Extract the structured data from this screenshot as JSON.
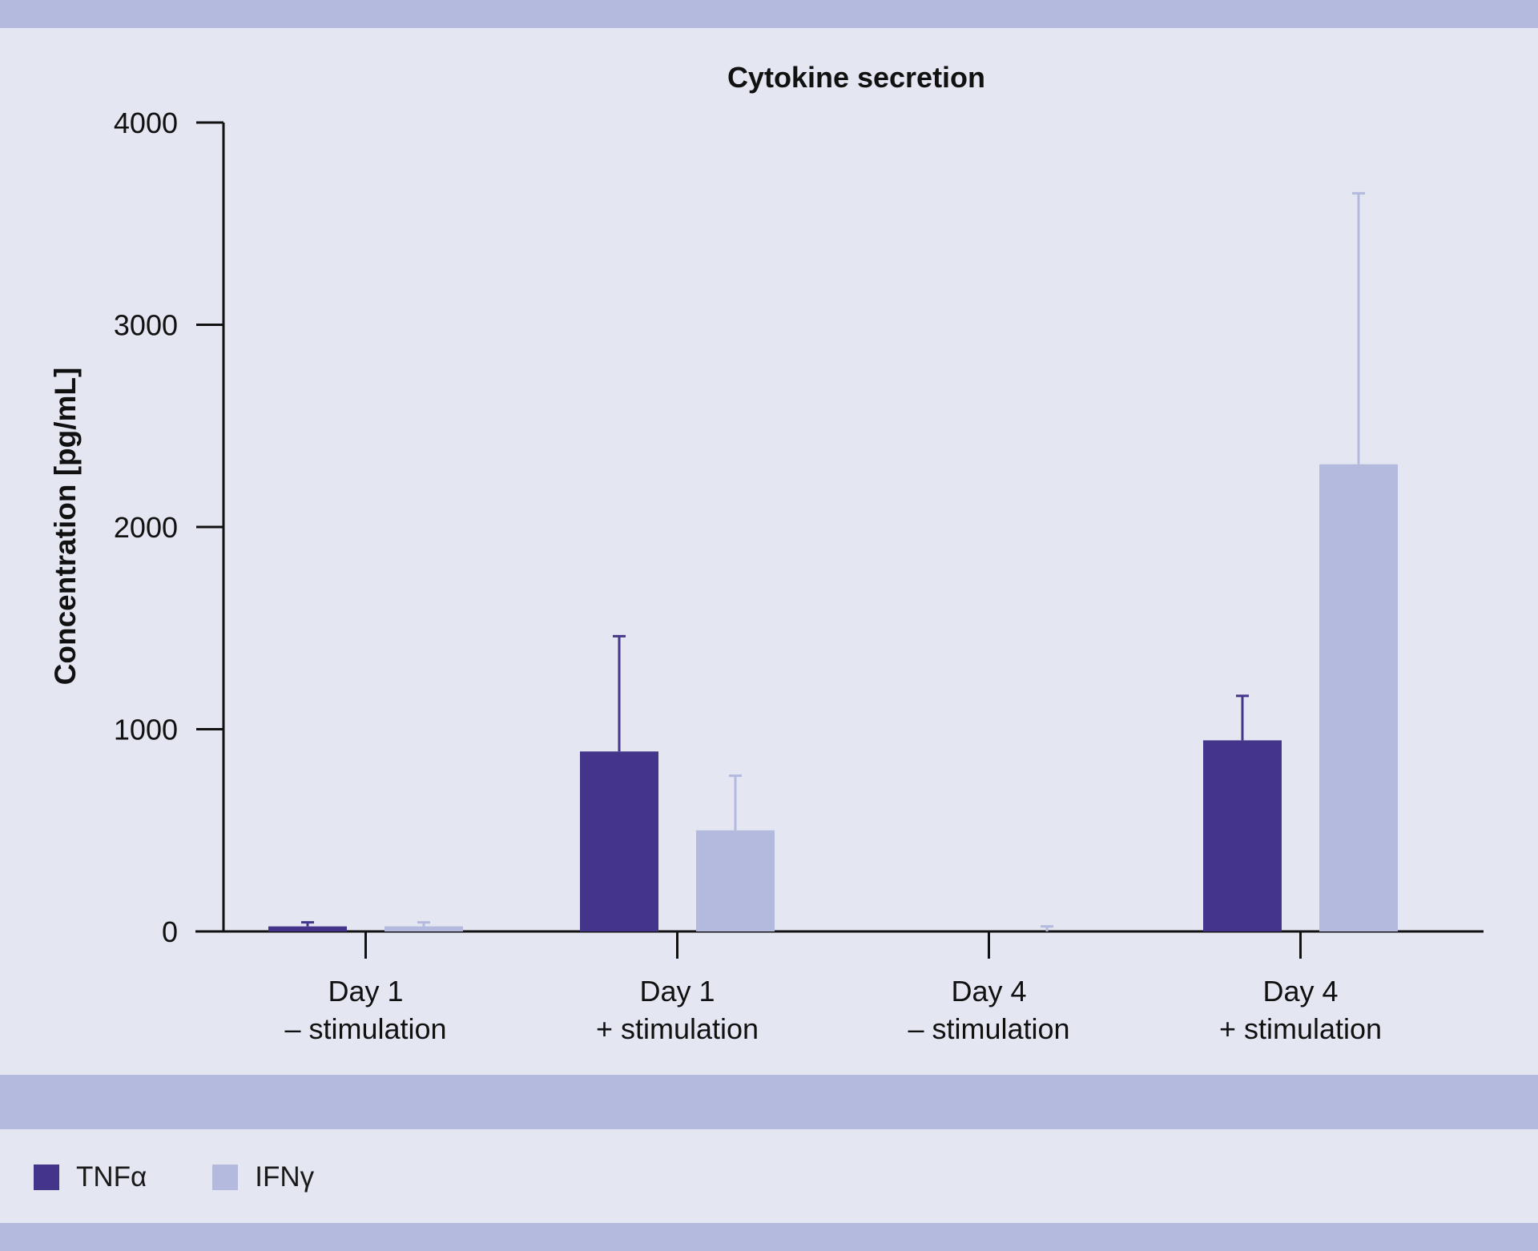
{
  "chart_data": {
    "type": "bar",
    "title": "Cytokine secretion",
    "xlabel": "",
    "ylabel": "Concentration [pg/mL]",
    "ylim": [
      0,
      4000
    ],
    "yticks": [
      "0",
      "1000",
      "2000",
      "3000",
      "4000"
    ],
    "categories": [
      [
        "Day 1",
        "– stimulation"
      ],
      [
        "Day 1",
        "+ stimulation"
      ],
      [
        "Day 4",
        "– stimulation"
      ],
      [
        "Day 4",
        "+ stimulation"
      ]
    ],
    "series": [
      {
        "name": "TNFα",
        "color": "#45358a",
        "values": [
          25,
          890,
          0,
          945
        ],
        "errors": [
          20,
          570,
          0,
          220
        ]
      },
      {
        "name": "IFNγ",
        "color": "#b3badd",
        "values": [
          25,
          500,
          0,
          2310
        ],
        "errors": [
          20,
          270,
          25,
          1340
        ]
      }
    ]
  },
  "legend": {
    "items": [
      {
        "label": "TNFα",
        "color": "#45358a"
      },
      {
        "label": "IFNγ",
        "color": "#b3badd"
      }
    ]
  }
}
